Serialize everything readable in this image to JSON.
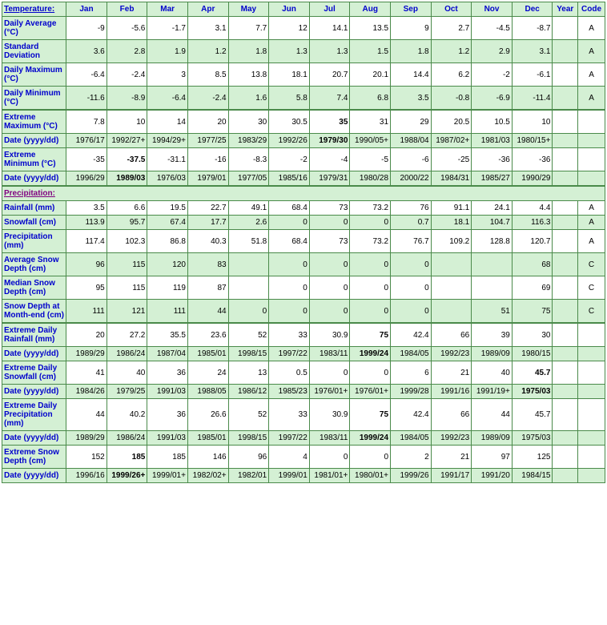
{
  "sections": {
    "temperature": "Temperature:",
    "precipitation": "Precipitation:"
  },
  "months": [
    "Jan",
    "Feb",
    "Mar",
    "Apr",
    "May",
    "Jun",
    "Jul",
    "Aug",
    "Sep",
    "Oct",
    "Nov",
    "Dec"
  ],
  "year_label": "Year",
  "code_label": "Code",
  "colors": {
    "header_bg": "#d4f0d4",
    "header_fg": "#0000cc",
    "border": "#4a8a4a",
    "alt_bg": "#d4f0d4",
    "white": "#ffffff",
    "section_fg": "#800080"
  },
  "rows": [
    {
      "label": "Daily Average (°C)",
      "vals": [
        "-9",
        "-5.6",
        "-1.7",
        "3.1",
        "7.7",
        "12",
        "14.1",
        "13.5",
        "9",
        "2.7",
        "-4.5",
        "-8.7"
      ],
      "year": "",
      "code": "A",
      "shade": "white"
    },
    {
      "label": "Standard Deviation",
      "vals": [
        "3.6",
        "2.8",
        "1.9",
        "1.2",
        "1.8",
        "1.3",
        "1.3",
        "1.5",
        "1.8",
        "1.2",
        "2.9",
        "3.1"
      ],
      "year": "",
      "code": "A",
      "shade": "green"
    },
    {
      "label": "Daily Maximum (°C)",
      "vals": [
        "-6.4",
        "-2.4",
        "3",
        "8.5",
        "13.8",
        "18.1",
        "20.7",
        "20.1",
        "14.4",
        "6.2",
        "-2",
        "-6.1"
      ],
      "year": "",
      "code": "A",
      "shade": "white"
    },
    {
      "label": "Daily Minimum (°C)",
      "vals": [
        "-11.6",
        "-8.9",
        "-6.4",
        "-2.4",
        "1.6",
        "5.8",
        "7.4",
        "6.8",
        "3.5",
        "-0.8",
        "-6.9",
        "-11.4"
      ],
      "year": "",
      "code": "A",
      "shade": "green"
    },
    {
      "label": "Extreme Maximum (°C)",
      "vals": [
        "7.8",
        "10",
        "14",
        "20",
        "30",
        "30.5",
        "35",
        "31",
        "29",
        "20.5",
        "10.5",
        "10"
      ],
      "bold": [
        6
      ],
      "year": "",
      "code": "",
      "shade": "white",
      "thick": true
    },
    {
      "label": "Date (yyyy/dd)",
      "vals": [
        "1976/17",
        "1992/27+",
        "1994/29+",
        "1977/25",
        "1983/29",
        "1992/26",
        "1979/30",
        "1990/05+",
        "1988/04",
        "1987/02+",
        "1981/03",
        "1980/15+"
      ],
      "bold": [
        6
      ],
      "year": "",
      "code": "",
      "shade": "green"
    },
    {
      "label": "Extreme Minimum (°C)",
      "vals": [
        "-35",
        "-37.5",
        "-31.1",
        "-16",
        "-8.3",
        "-2",
        "-4",
        "-5",
        "-6",
        "-25",
        "-36",
        "-36"
      ],
      "bold": [
        1
      ],
      "year": "",
      "code": "",
      "shade": "white"
    },
    {
      "label": "Date (yyyy/dd)",
      "vals": [
        "1996/29",
        "1989/03",
        "1976/03",
        "1979/01",
        "1977/05",
        "1985/16",
        "1979/31",
        "1980/28",
        "2000/22",
        "1984/31",
        "1985/27",
        "1990/29"
      ],
      "bold": [
        1
      ],
      "year": "",
      "code": "",
      "shade": "green"
    },
    {
      "section": "precipitation"
    },
    {
      "label": "Rainfall (mm)",
      "vals": [
        "3.5",
        "6.6",
        "19.5",
        "22.7",
        "49.1",
        "68.4",
        "73",
        "73.2",
        "76",
        "91.1",
        "24.1",
        "4.4"
      ],
      "year": "",
      "code": "A",
      "shade": "white"
    },
    {
      "label": "Snowfall (cm)",
      "vals": [
        "113.9",
        "95.7",
        "67.4",
        "17.7",
        "2.6",
        "0",
        "0",
        "0",
        "0.7",
        "18.1",
        "104.7",
        "116.3"
      ],
      "year": "",
      "code": "A",
      "shade": "green"
    },
    {
      "label": "Precipitation (mm)",
      "vals": [
        "117.4",
        "102.3",
        "86.8",
        "40.3",
        "51.8",
        "68.4",
        "73",
        "73.2",
        "76.7",
        "109.2",
        "128.8",
        "120.7"
      ],
      "year": "",
      "code": "A",
      "shade": "white"
    },
    {
      "label": "Average Snow Depth (cm)",
      "vals": [
        "96",
        "115",
        "120",
        "83",
        "",
        "0",
        "0",
        "0",
        "0",
        "",
        "",
        "68"
      ],
      "year": "",
      "code": "C",
      "shade": "green"
    },
    {
      "label": "Median Snow Depth (cm)",
      "vals": [
        "95",
        "115",
        "119",
        "87",
        "",
        "0",
        "0",
        "0",
        "0",
        "",
        "",
        "69"
      ],
      "year": "",
      "code": "C",
      "shade": "white"
    },
    {
      "label": "Snow Depth at Month-end (cm)",
      "vals": [
        "111",
        "121",
        "111",
        "44",
        "0",
        "0",
        "0",
        "0",
        "0",
        "",
        "51",
        "75"
      ],
      "year": "",
      "code": "C",
      "shade": "green"
    },
    {
      "label": "Extreme Daily Rainfall (mm)",
      "vals": [
        "20",
        "27.2",
        "35.5",
        "23.6",
        "52",
        "33",
        "30.9",
        "75",
        "42.4",
        "66",
        "39",
        "30"
      ],
      "bold": [
        7
      ],
      "year": "",
      "code": "",
      "shade": "white",
      "thick": true
    },
    {
      "label": "Date (yyyy/dd)",
      "vals": [
        "1989/29",
        "1986/24",
        "1987/04",
        "1985/01",
        "1998/15",
        "1997/22",
        "1983/11",
        "1999/24",
        "1984/05",
        "1992/23",
        "1989/09",
        "1980/15"
      ],
      "bold": [
        7
      ],
      "year": "",
      "code": "",
      "shade": "green"
    },
    {
      "label": "Extreme Daily Snowfall (cm)",
      "vals": [
        "41",
        "40",
        "36",
        "24",
        "13",
        "0.5",
        "0",
        "0",
        "6",
        "21",
        "40",
        "45.7"
      ],
      "bold": [
        11
      ],
      "year": "",
      "code": "",
      "shade": "white"
    },
    {
      "label": "Date (yyyy/dd)",
      "vals": [
        "1984/26",
        "1979/25",
        "1991/03",
        "1988/05",
        "1986/12",
        "1985/23",
        "1976/01+",
        "1976/01+",
        "1999/28",
        "1991/16",
        "1991/19+",
        "1975/03"
      ],
      "bold": [
        11
      ],
      "year": "",
      "code": "",
      "shade": "green"
    },
    {
      "label": "Extreme Daily Precipitation (mm)",
      "vals": [
        "44",
        "40.2",
        "36",
        "26.6",
        "52",
        "33",
        "30.9",
        "75",
        "42.4",
        "66",
        "44",
        "45.7"
      ],
      "bold": [
        7
      ],
      "year": "",
      "code": "",
      "shade": "white"
    },
    {
      "label": "Date (yyyy/dd)",
      "vals": [
        "1989/29",
        "1986/24",
        "1991/03",
        "1985/01",
        "1998/15",
        "1997/22",
        "1983/11",
        "1999/24",
        "1984/05",
        "1992/23",
        "1989/09",
        "1975/03"
      ],
      "bold": [
        7
      ],
      "year": "",
      "code": "",
      "shade": "green"
    },
    {
      "label": "Extreme Snow Depth (cm)",
      "vals": [
        "152",
        "185",
        "185",
        "146",
        "96",
        "4",
        "0",
        "0",
        "2",
        "21",
        "97",
        "125"
      ],
      "bold": [
        1
      ],
      "year": "",
      "code": "",
      "shade": "white"
    },
    {
      "label": "Date (yyyy/dd)",
      "vals": [
        "1996/16",
        "1999/26+",
        "1999/01+",
        "1982/02+",
        "1982/01",
        "1999/01",
        "1981/01+",
        "1980/01+",
        "1999/26",
        "1991/17",
        "1991/20",
        "1984/15"
      ],
      "bold": [
        1
      ],
      "year": "",
      "code": "",
      "shade": "green"
    }
  ]
}
